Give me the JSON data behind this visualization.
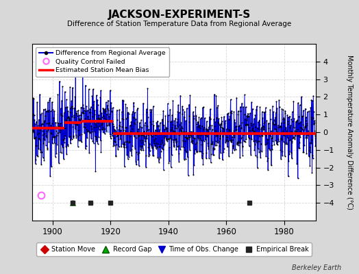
{
  "title": "JACKSON-EXPERIMENT-S",
  "subtitle": "Difference of Station Temperature Data from Regional Average",
  "ylabel": "Monthly Temperature Anomaly Difference (°C)",
  "xlim": [
    1893,
    1991
  ],
  "ylim": [
    -5,
    5
  ],
  "xticks": [
    1900,
    1920,
    1940,
    1960,
    1980
  ],
  "yticks": [
    -4,
    -3,
    -2,
    -1,
    0,
    1,
    2,
    3,
    4
  ],
  "background_color": "#d8d8d8",
  "plot_bg_color": "#ffffff",
  "bias_segments": [
    {
      "start": 1893,
      "end": 1904,
      "bias": 0.22
    },
    {
      "start": 1904,
      "end": 1910,
      "bias": 0.55
    },
    {
      "start": 1910,
      "end": 1921,
      "bias": 0.62
    },
    {
      "start": 1921,
      "end": 1991,
      "bias": -0.08
    }
  ],
  "line_color": "#0000cc",
  "line_fill_color": "#aabbff",
  "dot_color": "#000000",
  "bias_line_color": "#ff0000",
  "qc_failed_color": "#ff66ff",
  "station_move_color": "#cc0000",
  "record_gap_color": "#00aa00",
  "tobs_change_color": "#0000cc",
  "empirical_break_color": "#222222",
  "seed": 42,
  "n_years": 98,
  "start_year": 1893,
  "station_moves": [],
  "record_gaps": [
    1907
  ],
  "tobs_changes": [],
  "empirical_breaks": [
    1907,
    1913,
    1920,
    1968
  ],
  "qc_failed_pts": [
    [
      1896,
      -3.55
    ]
  ],
  "outlier_pts": [
    [
      1896,
      -2.7
    ]
  ],
  "sigma": 0.85,
  "bottom_legend_items": [
    "Station Move",
    "Record Gap",
    "Time of Obs. Change",
    "Empirical Break"
  ]
}
